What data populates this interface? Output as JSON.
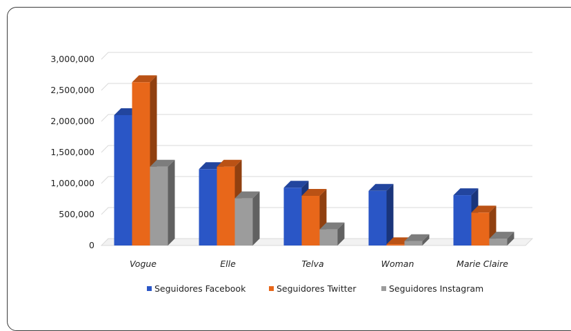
{
  "chart_data": {
    "type": "bar",
    "title": "",
    "xlabel": "",
    "ylabel": "",
    "categories": [
      "Vogue",
      "Elle",
      "Telva",
      "Woman",
      "Marie Claire"
    ],
    "series": [
      {
        "name": "Seguidores Facebook",
        "values": [
          2100000,
          1230000,
          930000,
          880000,
          810000
        ],
        "color": "#2a56c6"
      },
      {
        "name": "Seguidores Twitter",
        "values": [
          2630000,
          1270000,
          800000,
          20000,
          530000
        ],
        "color": "#e8671a"
      },
      {
        "name": "Seguidores Instagram",
        "values": [
          1270000,
          760000,
          260000,
          70000,
          110000
        ],
        "color": "#9c9c9c"
      }
    ],
    "ylim": [
      0,
      3000000
    ],
    "yticks": [
      "0",
      "500,000",
      "1,000,000",
      "1,500,000",
      "2,000,000",
      "2,500,000",
      "3,000,000"
    ],
    "grid": true,
    "legend_position": "bottom",
    "style": "3d-clustered-column"
  }
}
